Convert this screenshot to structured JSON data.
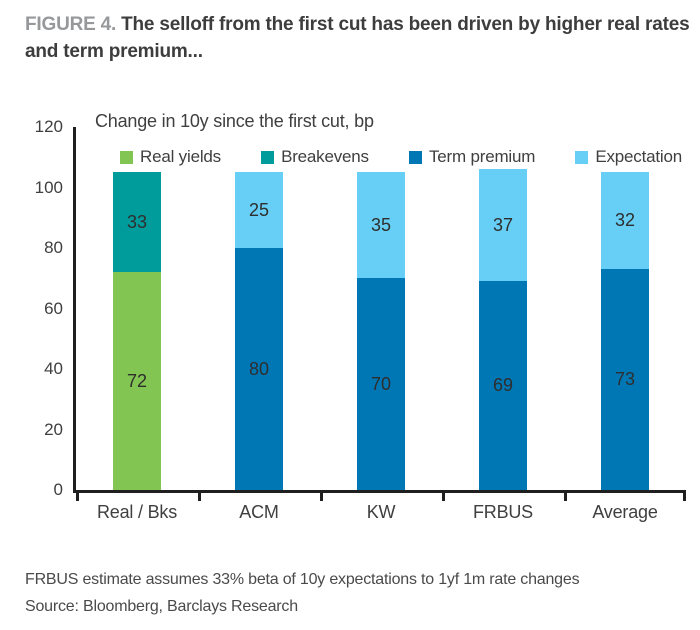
{
  "figure": {
    "label": "FIGURE 4.",
    "title": "The selloff from the first cut has been driven by higher real rates and term premium..."
  },
  "chart_data": {
    "type": "bar",
    "stacked": true,
    "subtitle": "Change in 10y since the first cut, bp",
    "categories": [
      "Real / Bks",
      "ACM",
      "KW",
      "FRBUS",
      "Average"
    ],
    "series": [
      {
        "name": "Real yields",
        "color": "#82C553",
        "values": [
          72,
          null,
          null,
          null,
          null
        ]
      },
      {
        "name": "Breakevens",
        "color": "#009C9C",
        "values": [
          33,
          null,
          null,
          null,
          null
        ]
      },
      {
        "name": "Term premium",
        "color": "#0077B5",
        "values": [
          null,
          80,
          70,
          69,
          73
        ]
      },
      {
        "name": "Expectation",
        "color": "#67CFF5",
        "values": [
          null,
          25,
          35,
          37,
          32
        ]
      }
    ],
    "ylim": [
      0,
      120
    ],
    "yticks": [
      0,
      20,
      40,
      60,
      80,
      100,
      120
    ],
    "xlabel": "",
    "ylabel": "",
    "legend_position": "top",
    "grid": false,
    "axis_color": "#1f1f1f"
  },
  "footnotes": [
    "FRBUS estimate assumes 33% beta of 10y expectations to 1yf 1m rate changes",
    "Source: Bloomberg, Barclays Research"
  ]
}
